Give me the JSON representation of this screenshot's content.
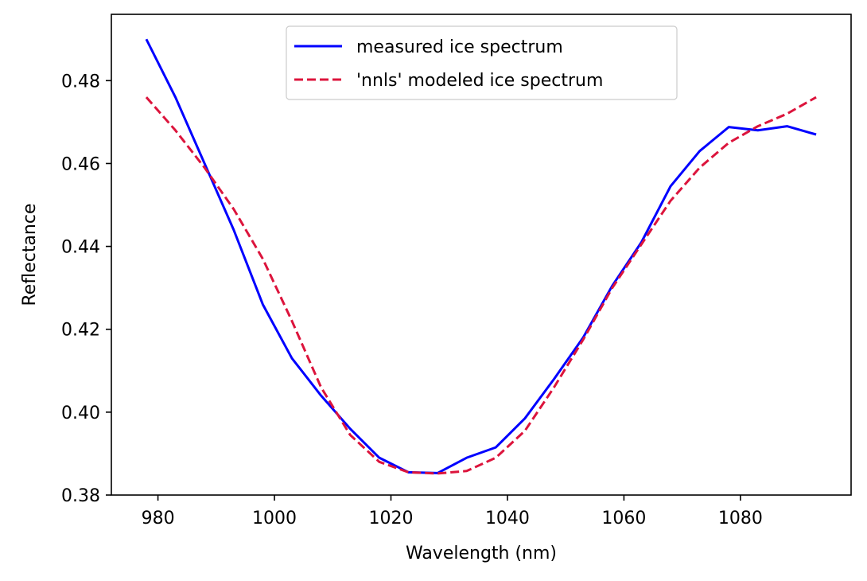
{
  "chart_data": {
    "type": "line",
    "title": "",
    "xlabel": "Wavelength (nm)",
    "ylabel": "Reflectance",
    "xlim": [
      972,
      1099
    ],
    "ylim": [
      0.38,
      0.496
    ],
    "xticks": [
      980,
      1000,
      1020,
      1040,
      1060,
      1080
    ],
    "yticks": [
      0.38,
      0.4,
      0.42,
      0.44,
      0.46,
      0.48
    ],
    "ytick_labels": [
      "0.38",
      "0.40",
      "0.42",
      "0.44",
      "0.46",
      "0.48"
    ],
    "xtick_labels": [
      "980",
      "1000",
      "1020",
      "1040",
      "1060",
      "1080"
    ],
    "grid": false,
    "legend_position": "upper center",
    "series": [
      {
        "name": "measured ice spectrum",
        "color": "#0000ff",
        "style": "solid",
        "x": [
          978,
          983,
          988,
          993,
          998,
          1003,
          1008,
          1013,
          1018,
          1023,
          1028,
          1033,
          1038,
          1043,
          1048,
          1053,
          1058,
          1063,
          1068,
          1073,
          1078,
          1083,
          1088,
          1093
        ],
        "y": [
          0.49,
          0.476,
          0.46,
          0.444,
          0.426,
          0.413,
          0.404,
          0.396,
          0.389,
          0.3855,
          0.3853,
          0.389,
          0.3915,
          0.3985,
          0.408,
          0.418,
          0.4305,
          0.441,
          0.4545,
          0.463,
          0.4688,
          0.468,
          0.469,
          0.467
        ]
      },
      {
        "name": "'nnls' modeled ice spectrum",
        "color": "#dc143c",
        "style": "dashed",
        "x": [
          978,
          983,
          988,
          993,
          998,
          1003,
          1008,
          1013,
          1018,
          1023,
          1028,
          1033,
          1038,
          1043,
          1048,
          1053,
          1058,
          1063,
          1068,
          1073,
          1078,
          1083,
          1088,
          1093
        ],
        "y": [
          0.476,
          0.468,
          0.459,
          0.449,
          0.437,
          0.422,
          0.406,
          0.3945,
          0.388,
          0.3855,
          0.3852,
          0.3858,
          0.389,
          0.3955,
          0.406,
          0.4175,
          0.43,
          0.4405,
          0.451,
          0.459,
          0.465,
          0.469,
          0.472,
          0.476
        ]
      }
    ]
  }
}
